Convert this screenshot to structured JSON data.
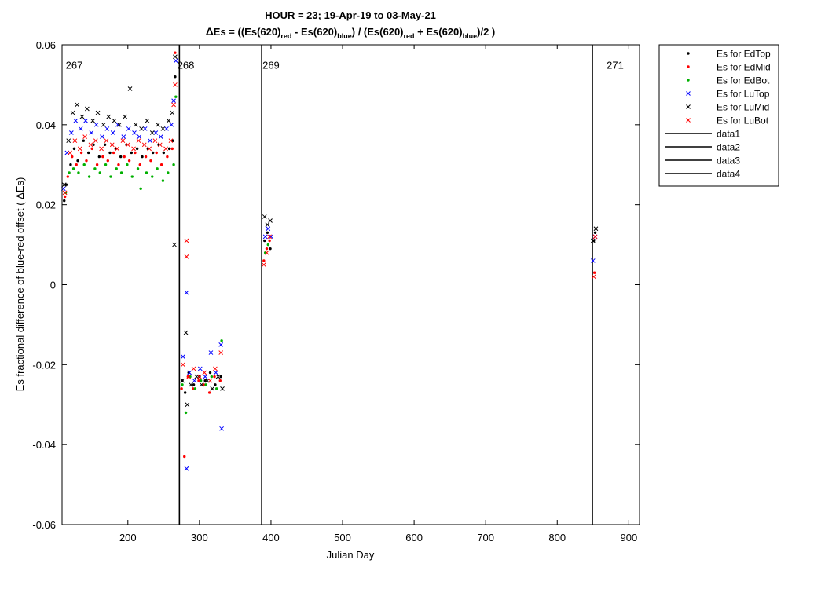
{
  "chart_data": {
    "type": "scatter",
    "title_line1": "HOUR = 23; 19-Apr-19 to 03-May-21",
    "title_line2": {
      "delta": "Δ",
      "p1": "Es = ((Es(620)",
      "s1": "red",
      "p2": " - Es(620)",
      "s2": "blue",
      "p3": ") / (Es(620)",
      "s3": "red",
      "p4": " + Es(620)",
      "s4": "blue",
      "p5": ")/2  )"
    },
    "xlabel": "Julian Day",
    "ylabel": "Es fractional difference of blue-red offset (  ΔEs)",
    "xlim": [
      108,
      915
    ],
    "ylim": [
      -0.06,
      0.06
    ],
    "xticks": [
      200,
      300,
      400,
      500,
      600,
      700,
      800,
      900
    ],
    "yticks": [
      -0.06,
      -0.04,
      -0.02,
      0,
      0.02,
      0.04,
      0.06
    ],
    "grid": false,
    "legend_position": "outside-top-right",
    "segment_labels": [
      {
        "text": "267",
        "x": 125
      },
      {
        "text": "268",
        "x": 281
      },
      {
        "text": "269",
        "x": 400
      },
      {
        "text": "271",
        "x": 881
      }
    ],
    "segment_label_y": 0.054,
    "vertical_lines": [
      {
        "name": "data1",
        "x": 272
      },
      {
        "name": "data2",
        "x": 387
      },
      {
        "name": "data3",
        "x": 849
      },
      {
        "name": "data4",
        "x": 849
      }
    ],
    "series": [
      {
        "name": "Es for EdTop",
        "marker": "dot",
        "color": "#000000",
        "points": [
          [
            111,
            0.021
          ],
          [
            114,
            0.025
          ],
          [
            120,
            0.03
          ],
          [
            125,
            0.034
          ],
          [
            130,
            0.031
          ],
          [
            138,
            0.036
          ],
          [
            145,
            0.033
          ],
          [
            152,
            0.035
          ],
          [
            160,
            0.032
          ],
          [
            168,
            0.035
          ],
          [
            175,
            0.033
          ],
          [
            183,
            0.034
          ],
          [
            190,
            0.032
          ],
          [
            198,
            0.035
          ],
          [
            205,
            0.033
          ],
          [
            213,
            0.034
          ],
          [
            220,
            0.032
          ],
          [
            228,
            0.034
          ],
          [
            235,
            0.033
          ],
          [
            243,
            0.035
          ],
          [
            250,
            0.033
          ],
          [
            258,
            0.034
          ],
          [
            263,
            0.036
          ],
          [
            266,
            0.052
          ],
          [
            276,
            -0.024
          ],
          [
            280,
            -0.027
          ],
          [
            285,
            -0.022
          ],
          [
            292,
            -0.025
          ],
          [
            300,
            -0.023
          ],
          [
            308,
            -0.024
          ],
          [
            315,
            -0.022
          ],
          [
            322,
            -0.025
          ],
          [
            330,
            -0.023
          ],
          [
            391,
            0.011
          ],
          [
            395,
            0.013
          ],
          [
            399,
            0.009
          ],
          [
            851,
            0.011
          ],
          [
            853,
            0.013
          ]
        ]
      },
      {
        "name": "Es for EdMid",
        "marker": "dot",
        "color": "#ff0000",
        "points": [
          [
            112,
            0.022
          ],
          [
            116,
            0.027
          ],
          [
            122,
            0.032
          ],
          [
            128,
            0.03
          ],
          [
            135,
            0.033
          ],
          [
            142,
            0.031
          ],
          [
            150,
            0.034
          ],
          [
            157,
            0.03
          ],
          [
            165,
            0.032
          ],
          [
            172,
            0.031
          ],
          [
            180,
            0.033
          ],
          [
            187,
            0.03
          ],
          [
            195,
            0.032
          ],
          [
            202,
            0.031
          ],
          [
            210,
            0.033
          ],
          [
            217,
            0.03
          ],
          [
            225,
            0.032
          ],
          [
            232,
            0.031
          ],
          [
            240,
            0.033
          ],
          [
            247,
            0.03
          ],
          [
            255,
            0.032
          ],
          [
            262,
            0.034
          ],
          [
            266,
            0.058
          ],
          [
            275,
            -0.026
          ],
          [
            279,
            -0.043
          ],
          [
            284,
            -0.023
          ],
          [
            291,
            -0.026
          ],
          [
            299,
            -0.024
          ],
          [
            306,
            -0.025
          ],
          [
            314,
            -0.027
          ],
          [
            321,
            -0.023
          ],
          [
            329,
            -0.024
          ],
          [
            390,
            0.006
          ],
          [
            394,
            0.009
          ],
          [
            398,
            0.011
          ],
          [
            852,
            0.003
          ]
        ]
      },
      {
        "name": "Es for EdBot",
        "marker": "dot",
        "color": "#00b000",
        "points": [
          [
            113,
            0.023
          ],
          [
            118,
            0.028
          ],
          [
            124,
            0.029
          ],
          [
            131,
            0.028
          ],
          [
            139,
            0.03
          ],
          [
            146,
            0.027
          ],
          [
            154,
            0.029
          ],
          [
            161,
            0.028
          ],
          [
            169,
            0.03
          ],
          [
            176,
            0.027
          ],
          [
            184,
            0.029
          ],
          [
            191,
            0.028
          ],
          [
            199,
            0.03
          ],
          [
            206,
            0.027
          ],
          [
            214,
            0.029
          ],
          [
            218,
            0.024
          ],
          [
            226,
            0.028
          ],
          [
            234,
            0.027
          ],
          [
            241,
            0.029
          ],
          [
            249,
            0.026
          ],
          [
            256,
            0.028
          ],
          [
            264,
            0.03
          ],
          [
            267,
            0.047
          ],
          [
            276,
            -0.025
          ],
          [
            281,
            -0.032
          ],
          [
            287,
            -0.023
          ],
          [
            294,
            -0.026
          ],
          [
            302,
            -0.024
          ],
          [
            309,
            -0.025
          ],
          [
            317,
            -0.023
          ],
          [
            324,
            -0.026
          ],
          [
            331,
            -0.014
          ],
          [
            392,
            0.008
          ],
          [
            396,
            0.01
          ]
        ]
      },
      {
        "name": "Es for LuTop",
        "marker": "x",
        "color": "#0000ff",
        "points": [
          [
            110,
            0.024
          ],
          [
            115,
            0.033
          ],
          [
            121,
            0.038
          ],
          [
            127,
            0.041
          ],
          [
            134,
            0.039
          ],
          [
            141,
            0.041
          ],
          [
            149,
            0.038
          ],
          [
            156,
            0.04
          ],
          [
            164,
            0.037
          ],
          [
            171,
            0.039
          ],
          [
            179,
            0.038
          ],
          [
            186,
            0.04
          ],
          [
            194,
            0.037
          ],
          [
            201,
            0.039
          ],
          [
            209,
            0.038
          ],
          [
            216,
            0.037
          ],
          [
            224,
            0.039
          ],
          [
            231,
            0.036
          ],
          [
            239,
            0.038
          ],
          [
            246,
            0.037
          ],
          [
            254,
            0.039
          ],
          [
            261,
            0.04
          ],
          [
            264,
            0.046
          ],
          [
            267,
            0.056
          ],
          [
            277,
            -0.018
          ],
          [
            282,
            -0.046
          ],
          [
            282,
            -0.002
          ],
          [
            286,
            -0.022
          ],
          [
            293,
            -0.024
          ],
          [
            301,
            -0.021
          ],
          [
            308,
            -0.023
          ],
          [
            316,
            -0.017
          ],
          [
            323,
            -0.022
          ],
          [
            330,
            -0.015
          ],
          [
            331,
            -0.036
          ],
          [
            392,
            0.012
          ],
          [
            396,
            0.014
          ],
          [
            400,
            0.012
          ],
          [
            850,
            0.006
          ],
          [
            853,
            0.012
          ]
        ]
      },
      {
        "name": "Es for LuMid",
        "marker": "x",
        "color": "#000000",
        "points": [
          [
            111,
            0.025
          ],
          [
            117,
            0.036
          ],
          [
            123,
            0.043
          ],
          [
            129,
            0.045
          ],
          [
            136,
            0.042
          ],
          [
            143,
            0.044
          ],
          [
            151,
            0.041
          ],
          [
            158,
            0.043
          ],
          [
            166,
            0.04
          ],
          [
            173,
            0.042
          ],
          [
            181,
            0.041
          ],
          [
            188,
            0.04
          ],
          [
            196,
            0.042
          ],
          [
            203,
            0.049
          ],
          [
            211,
            0.04
          ],
          [
            219,
            0.039
          ],
          [
            227,
            0.041
          ],
          [
            234,
            0.038
          ],
          [
            242,
            0.04
          ],
          [
            249,
            0.039
          ],
          [
            257,
            0.041
          ],
          [
            262,
            0.043
          ],
          [
            265,
            0.01
          ],
          [
            266,
            0.057
          ],
          [
            276,
            -0.024
          ],
          [
            281,
            -0.012
          ],
          [
            283,
            -0.03
          ],
          [
            288,
            -0.025
          ],
          [
            296,
            -0.023
          ],
          [
            303,
            -0.025
          ],
          [
            311,
            -0.024
          ],
          [
            318,
            -0.026
          ],
          [
            326,
            -0.023
          ],
          [
            332,
            -0.026
          ],
          [
            391,
            0.017
          ],
          [
            395,
            0.015
          ],
          [
            399,
            0.016
          ],
          [
            850,
            0.011
          ],
          [
            854,
            0.014
          ]
        ]
      },
      {
        "name": "Es for LuBot",
        "marker": "x",
        "color": "#ff0000",
        "points": [
          [
            112,
            0.023
          ],
          [
            119,
            0.033
          ],
          [
            126,
            0.036
          ],
          [
            133,
            0.034
          ],
          [
            140,
            0.037
          ],
          [
            148,
            0.035
          ],
          [
            155,
            0.036
          ],
          [
            163,
            0.034
          ],
          [
            170,
            0.036
          ],
          [
            178,
            0.035
          ],
          [
            185,
            0.034
          ],
          [
            193,
            0.036
          ],
          [
            200,
            0.035
          ],
          [
            208,
            0.034
          ],
          [
            215,
            0.036
          ],
          [
            223,
            0.035
          ],
          [
            230,
            0.034
          ],
          [
            238,
            0.036
          ],
          [
            245,
            0.035
          ],
          [
            253,
            0.034
          ],
          [
            260,
            0.036
          ],
          [
            264,
            0.045
          ],
          [
            266,
            0.05
          ],
          [
            277,
            -0.02
          ],
          [
            282,
            0.011
          ],
          [
            282,
            0.007
          ],
          [
            285,
            -0.023
          ],
          [
            292,
            -0.021
          ],
          [
            300,
            -0.023
          ],
          [
            307,
            -0.022
          ],
          [
            315,
            -0.024
          ],
          [
            322,
            -0.021
          ],
          [
            330,
            -0.017
          ],
          [
            390,
            0.005
          ],
          [
            394,
            0.008
          ],
          [
            398,
            0.012
          ],
          [
            851,
            0.002
          ],
          [
            853,
            0.012
          ]
        ]
      }
    ]
  }
}
